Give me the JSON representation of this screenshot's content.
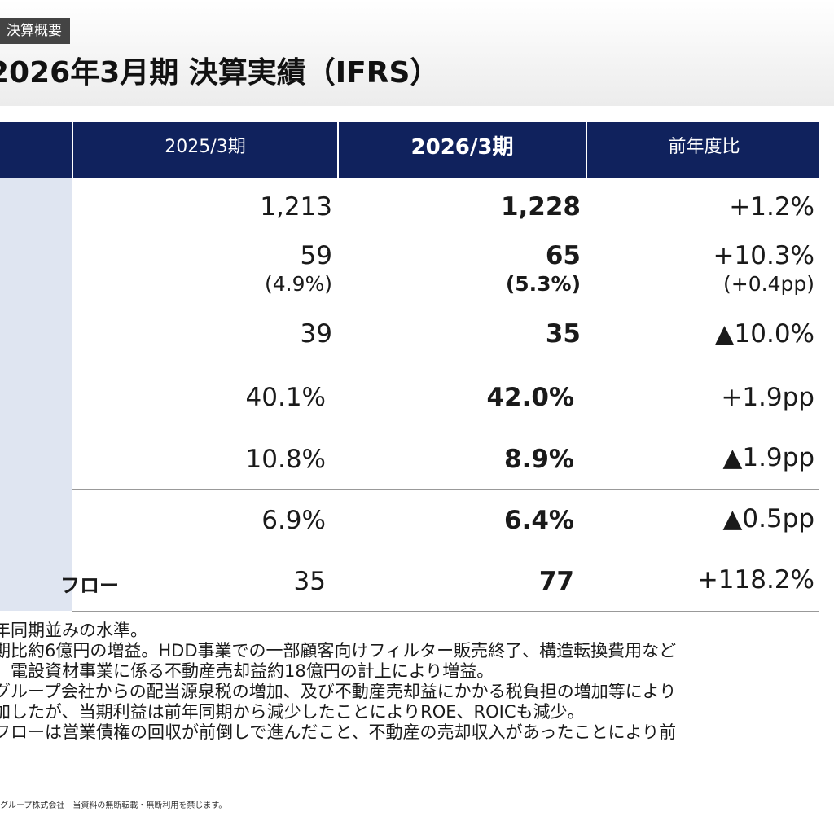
{
  "header": {
    "section_tag": "決算概要",
    "title": "2026年3月期  決算実績（IFRS）"
  },
  "table": {
    "columns": [
      "2025/3期",
      "2026/3期",
      "前年度比"
    ],
    "rows": [
      {
        "label": "",
        "prev": "1,213",
        "prev_sub": "",
        "curr": "1,228",
        "curr_sub": "",
        "diff": "+1.2%",
        "diff_sub": ""
      },
      {
        "label": "",
        "prev": "59",
        "prev_sub": "(4.9%)",
        "curr": "65",
        "curr_sub": "(5.3%)",
        "diff": "+10.3%",
        "diff_sub": "(+0.4pp)"
      },
      {
        "label": "",
        "prev": "39",
        "prev_sub": "",
        "curr": "35",
        "curr_sub": "",
        "diff": "▲10.0%",
        "diff_sub": ""
      },
      {
        "label": "",
        "prev": "40.1%",
        "prev_sub": "",
        "curr": "42.0%",
        "curr_sub": "",
        "diff": "+1.9pp",
        "diff_sub": ""
      },
      {
        "label": "",
        "prev": "10.8%",
        "prev_sub": "",
        "curr": "8.9%",
        "curr_sub": "",
        "diff": "▲1.9pp",
        "diff_sub": ""
      },
      {
        "label": "",
        "prev": "6.9%",
        "prev_sub": "",
        "curr": "6.4%",
        "curr_sub": "",
        "diff": "▲0.5pp",
        "diff_sub": ""
      },
      {
        "label": "フロー",
        "prev": "35",
        "prev_sub": "",
        "curr": "77",
        "curr_sub": "",
        "diff": "+118.2%",
        "diff_sub": ""
      }
    ]
  },
  "notes": [
    "年同期並みの水準。",
    "期比約6億円の増益。HDD事業での一部顧客向けフィルター販売終了、構造転換費用など",
    "、電設資材事業に係る不動産売却益約18億円の計上により増益。",
    "グループ会社からの配当源泉税の増加、及び不動産売却益にかかる税負担の増加等により",
    "加したが、当期利益は前年同期から減少したことによりROE、ROICも減少。",
    "フローは営業債権の回収が前倒しで進んだこと、不動産の売却収入があったことにより前"
  ],
  "footer": {
    "text": "グループ株式会社　当資料の無断転載・無断利用を禁じます。"
  }
}
